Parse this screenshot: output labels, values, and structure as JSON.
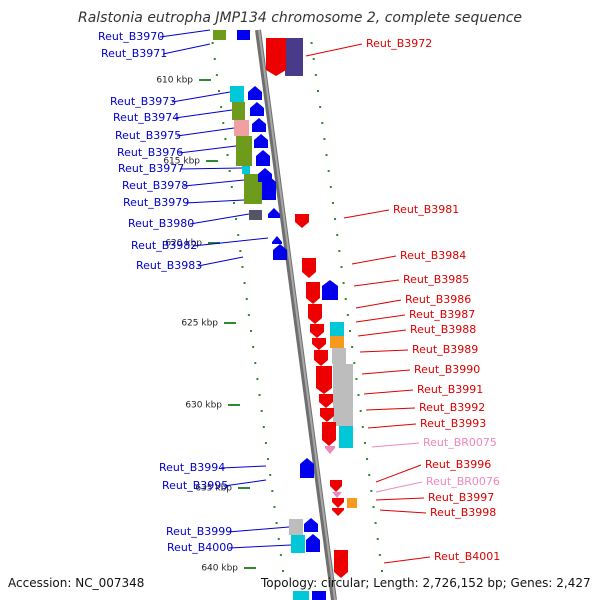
{
  "header": {
    "title": "Ralstonia eutropha JMP134 chromosome 2, complete sequence"
  },
  "footer": {
    "accession": "Accession: NC_007348",
    "summary": "Topology: circular; Length: 2,726,152 bp; Genes: 2,427"
  },
  "colors": {
    "backbone": "#8a8a8a",
    "tick": "#2f8a2f",
    "left_label": "#0000cc",
    "right_label": "#dd0000",
    "rna_label": "#ee88bb",
    "gene_forward": "#0000ee",
    "gene_reverse": "#ee0000",
    "rna": "#ee88bb",
    "cog_cyan": "#00c8d8",
    "cog_olive": "#6e9b1c",
    "cog_pink": "#f0a0a0",
    "cog_gray": "#bdbdbd",
    "cog_orange": "#f59a1e",
    "cog_navy": "#4a3a8a",
    "cog_dark": "#555566"
  },
  "kbp_labels": [
    "610 kbp",
    "615 kbp",
    "620 kbp",
    "625 kbp",
    "630 kbp",
    "635 kbp",
    "640 kbp"
  ],
  "genes": {
    "left": [
      {
        "label": "Reut_B3970",
        "strand": "+"
      },
      {
        "label": "Reut_B3971",
        "strand": "+"
      },
      {
        "label": "Reut_B3973",
        "strand": "+"
      },
      {
        "label": "Reut_B3974",
        "strand": "+"
      },
      {
        "label": "Reut_B3975",
        "strand": "+"
      },
      {
        "label": "Reut_B3976",
        "strand": "+"
      },
      {
        "label": "Reut_B3977",
        "strand": "+"
      },
      {
        "label": "Reut_B3978",
        "strand": "+"
      },
      {
        "label": "Reut_B3979",
        "strand": "+"
      },
      {
        "label": "Reut_B3980",
        "strand": "+"
      },
      {
        "label": "Reut_B3982",
        "strand": "+"
      },
      {
        "label": "Reut_B3983",
        "strand": "+"
      },
      {
        "label": "Reut_B3994",
        "strand": "+"
      },
      {
        "label": "Reut_B3995",
        "strand": "+"
      },
      {
        "label": "Reut_B3999",
        "strand": "+"
      },
      {
        "label": "Reut_B4000",
        "strand": "+"
      }
    ],
    "right": [
      {
        "label": "Reut_B3972",
        "strand": "-",
        "kind": "gene"
      },
      {
        "label": "Reut_B3981",
        "strand": "-",
        "kind": "gene"
      },
      {
        "label": "Reut_B3984",
        "strand": "-",
        "kind": "gene"
      },
      {
        "label": "Reut_B3985",
        "strand": "-",
        "kind": "gene"
      },
      {
        "label": "Reut_B3986",
        "strand": "-",
        "kind": "gene"
      },
      {
        "label": "Reut_B3987",
        "strand": "-",
        "kind": "gene"
      },
      {
        "label": "Reut_B3988",
        "strand": "-",
        "kind": "gene"
      },
      {
        "label": "Reut_B3989",
        "strand": "-",
        "kind": "gene"
      },
      {
        "label": "Reut_B3990",
        "strand": "-",
        "kind": "gene"
      },
      {
        "label": "Reut_B3991",
        "strand": "-",
        "kind": "gene"
      },
      {
        "label": "Reut_B3992",
        "strand": "-",
        "kind": "gene"
      },
      {
        "label": "Reut_B3993",
        "strand": "-",
        "kind": "gene"
      },
      {
        "label": "Reut_BR0075",
        "strand": "-",
        "kind": "rna"
      },
      {
        "label": "Reut_B3996",
        "strand": "-",
        "kind": "gene"
      },
      {
        "label": "Reut_BR0076",
        "strand": "-",
        "kind": "rna"
      },
      {
        "label": "Reut_B3997",
        "strand": "-",
        "kind": "gene"
      },
      {
        "label": "Reut_B3998",
        "strand": "-",
        "kind": "gene"
      },
      {
        "label": "Reut_B4001",
        "strand": "-",
        "kind": "gene"
      }
    ]
  }
}
